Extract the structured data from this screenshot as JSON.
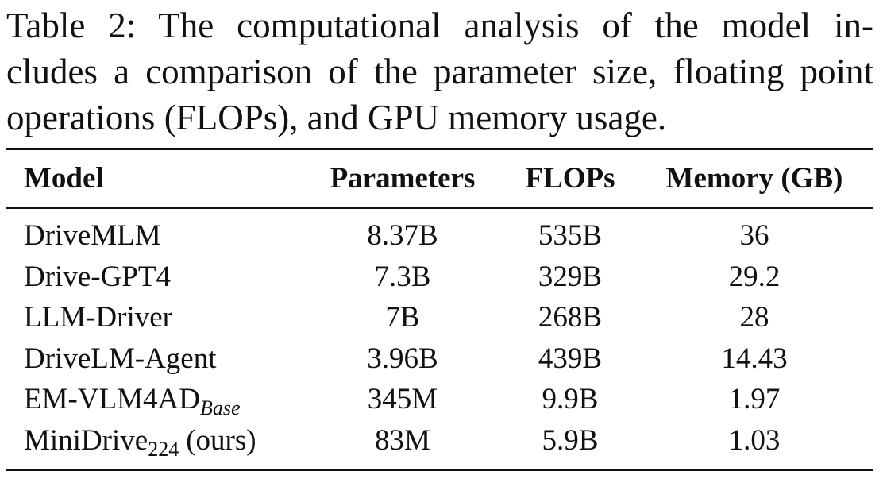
{
  "caption": {
    "lines": [
      "Table 2: The computational analysis of the model in-",
      "cludes a comparison of the parameter size, floating point",
      "operations (FLOPs), and GPU memory usage."
    ]
  },
  "table": {
    "headers": [
      "Model",
      "Parameters",
      "FLOPs",
      "Memory (GB)"
    ],
    "rows": [
      [
        "DriveMLM",
        "8.37B",
        "535B",
        "36"
      ],
      [
        "Drive-GPT4",
        "7.3B",
        "329B",
        "29.2"
      ],
      [
        "LLM-Driver",
        "7B",
        "268B",
        "28"
      ],
      [
        "DriveLM-Agent",
        "3.96B",
        "439B",
        "14.43"
      ],
      [
        {
          "base": "EM-VLM4AD",
          "sub": "Base"
        },
        "345M",
        "9.9B",
        "1.97"
      ],
      [
        {
          "base": "MiniDrive",
          "sub": "224",
          "suffix": "(ours)"
        },
        "83M",
        "5.9B",
        "1.03"
      ]
    ]
  }
}
